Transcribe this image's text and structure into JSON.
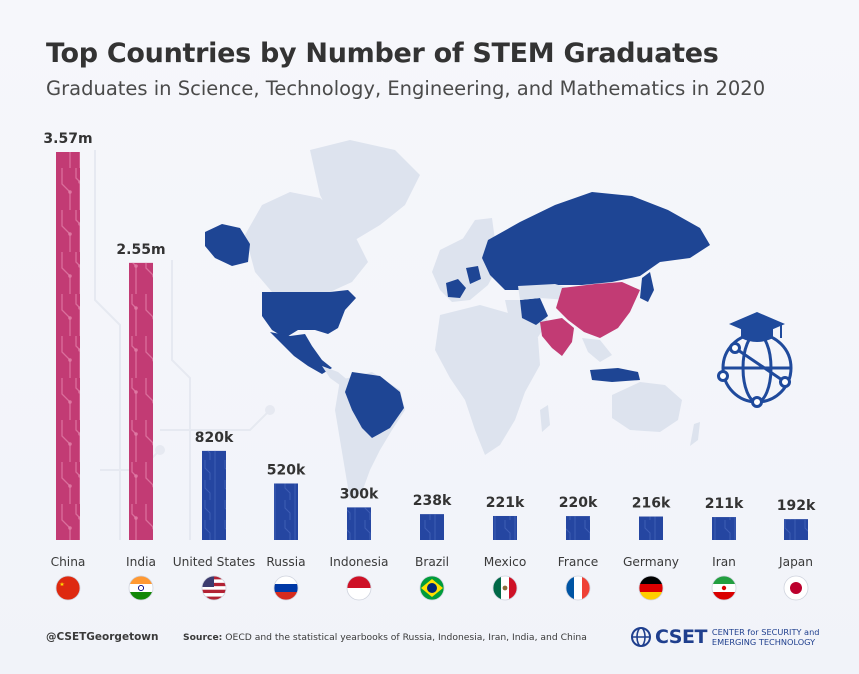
{
  "header": {
    "title": "Top Countries by Number of STEM Graduates",
    "subtitle": "Graduates in Science, Technology, Engineering, and Mathematics in 2020"
  },
  "chart_data": {
    "type": "bar",
    "title": "Top Countries by Number of STEM Graduates",
    "subtitle": "Graduates in Science, Technology, Engineering, and Mathematics in 2020",
    "categories": [
      "China",
      "India",
      "United States",
      "Russia",
      "Indonesia",
      "Brazil",
      "Mexico",
      "France",
      "Germany",
      "Iran",
      "Japan"
    ],
    "values": [
      3570000,
      2550000,
      820000,
      520000,
      300000,
      238000,
      221000,
      220000,
      216000,
      211000,
      192000
    ],
    "data_labels": [
      "3.57m",
      "2.55m",
      "820k",
      "520k",
      "300k",
      "238k",
      "221k",
      "220k",
      "216k",
      "211k",
      "192k"
    ],
    "highlight_categories": [
      "China",
      "India"
    ],
    "colors": {
      "highlight": "#c23b74",
      "default": "#2546a1",
      "map_base": "#dde3ee",
      "map_blue": "#1e4594",
      "map_pink": "#c23b74"
    },
    "ylim": [
      0,
      3570000
    ],
    "grid": false,
    "legend": "none",
    "xlabel": "",
    "ylabel": ""
  },
  "flags": [
    "china-flag-icon",
    "india-flag-icon",
    "us-flag-icon",
    "russia-flag-icon",
    "indonesia-flag-icon",
    "brazil-flag-icon",
    "mexico-flag-icon",
    "france-flag-icon",
    "germany-flag-icon",
    "iran-flag-icon",
    "japan-flag-icon"
  ],
  "footer": {
    "handle": "@CSETGeorgetown",
    "source_label": "Source:",
    "source_text": " OECD and the statistical yearbooks of Russia, Indonesia, Iran, India, and China",
    "brand": "CSET",
    "tagline_line1": "CENTER for SECURITY and",
    "tagline_line2": "EMERGING TECHNOLOGY"
  }
}
